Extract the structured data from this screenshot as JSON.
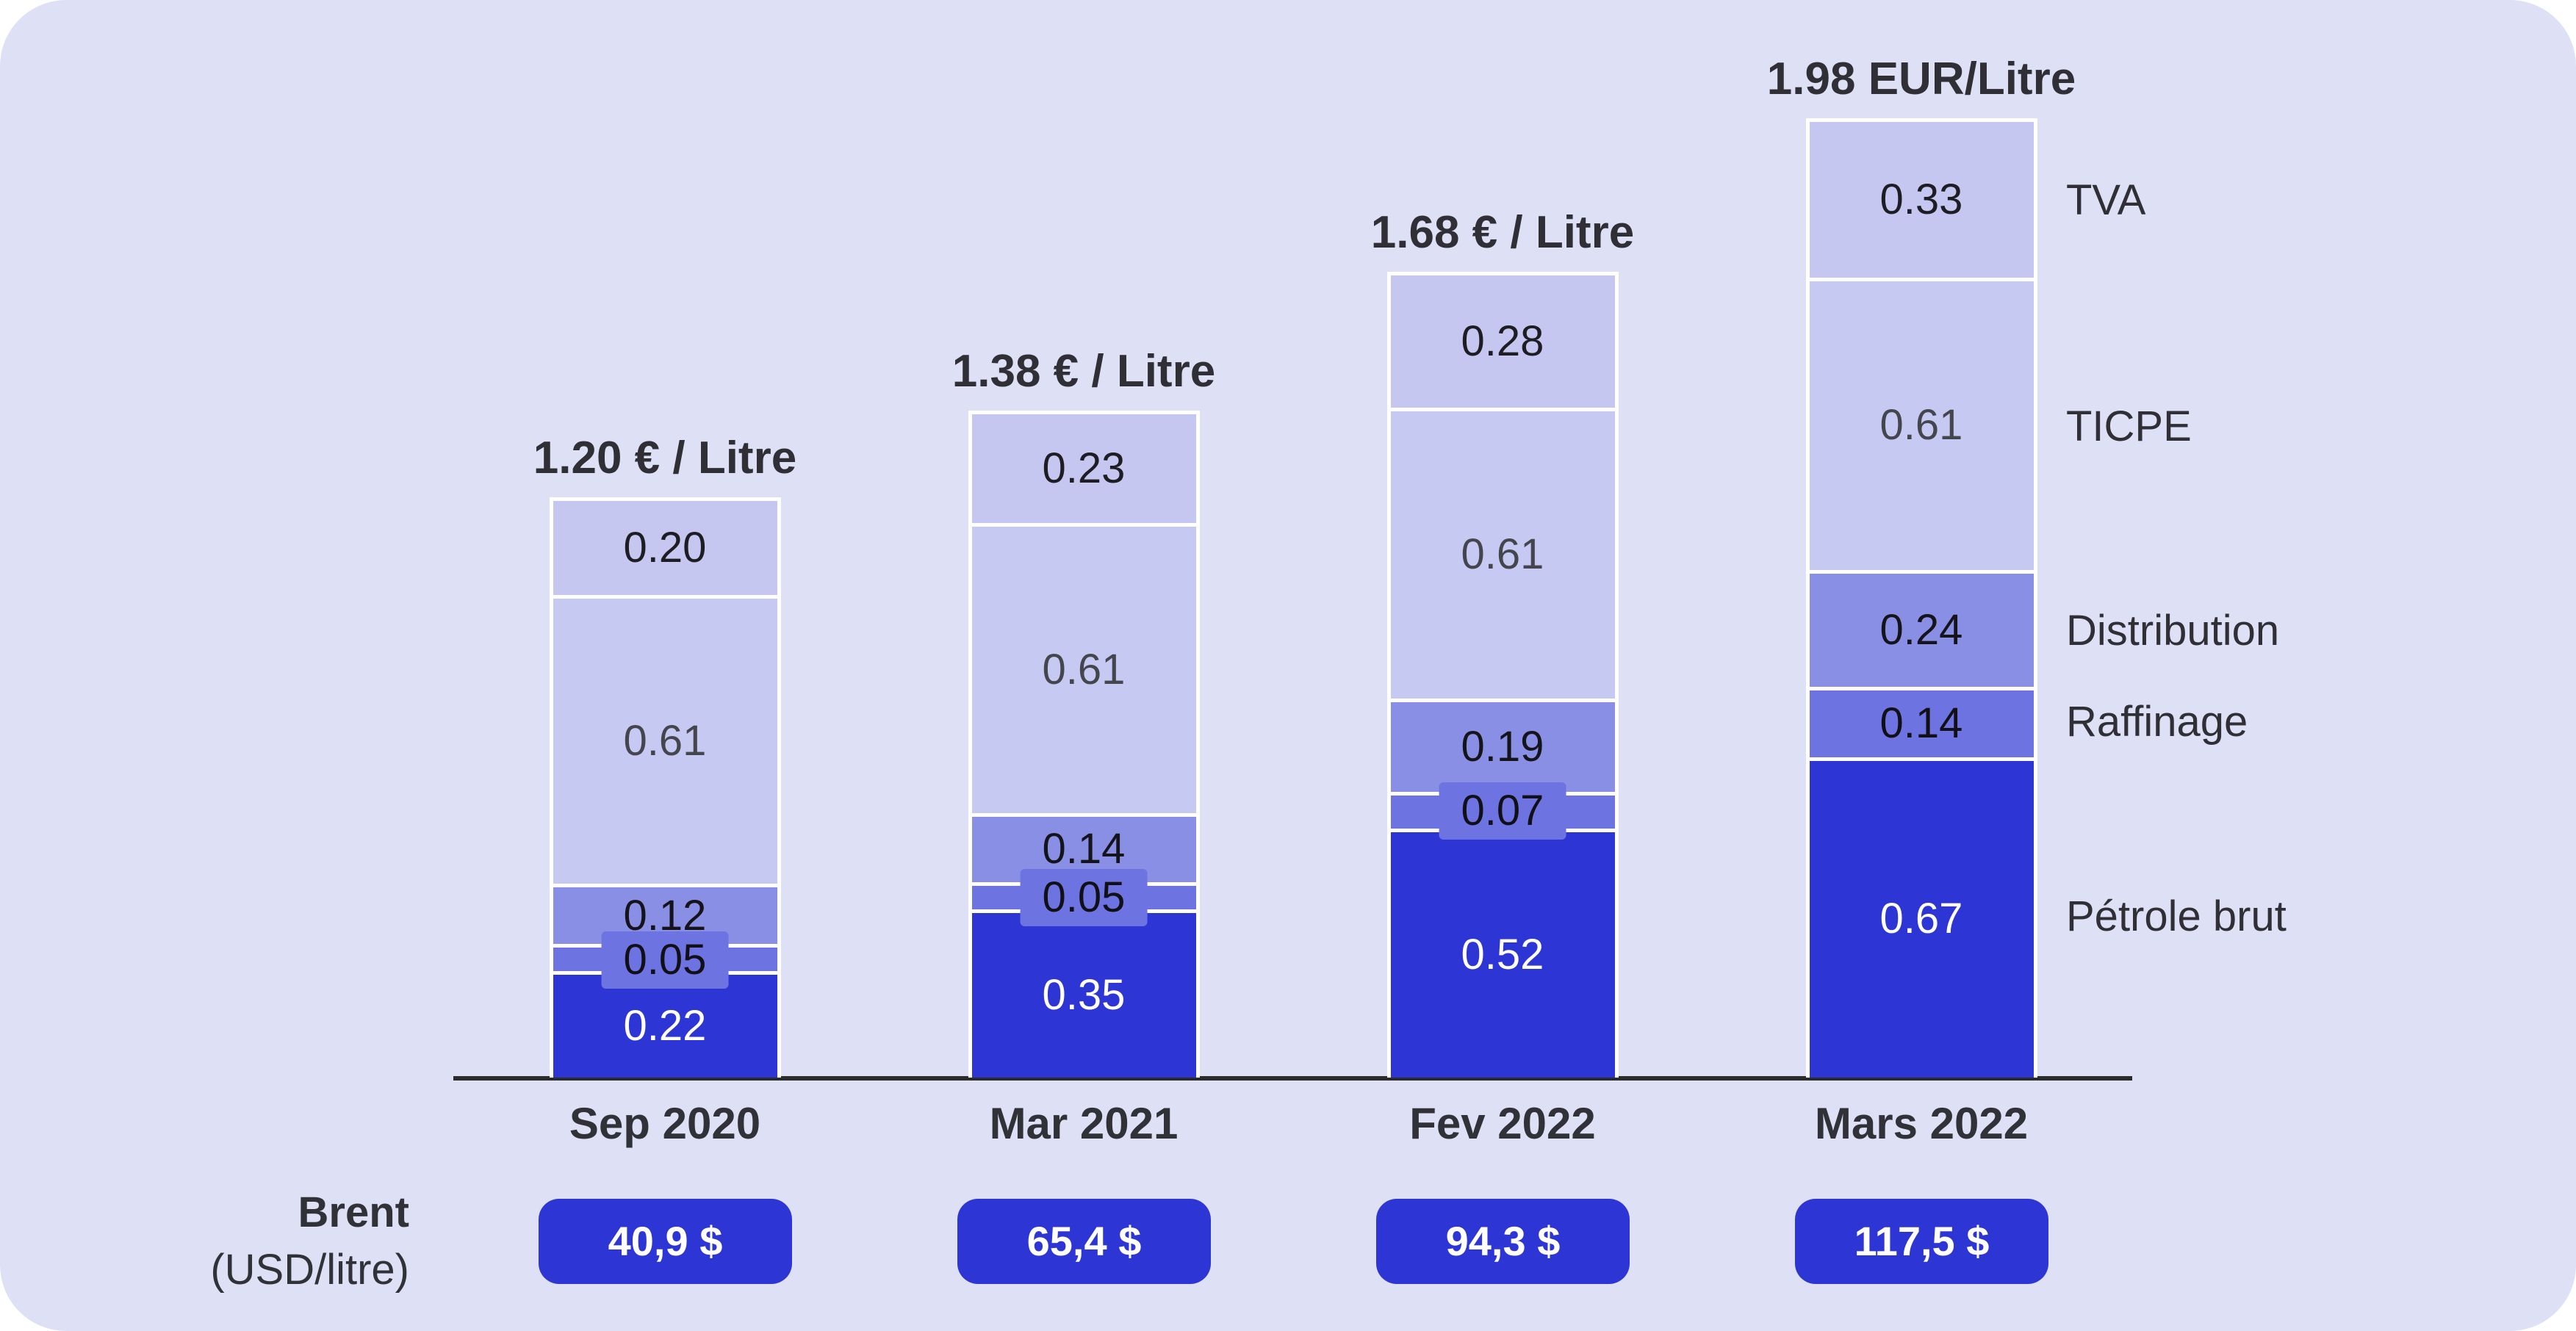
{
  "chart_data": {
    "type": "bar",
    "stacked": true,
    "categories": [
      "Sep 2020",
      "Mar 2021",
      "Fev 2022",
      "Mars 2022"
    ],
    "totals_labels": [
      "1.20 € / Litre",
      "1.38 € / Litre",
      "1.68 € / Litre",
      "1.98 EUR/Litre"
    ],
    "series": [
      {
        "name": "Pétrole brut",
        "color": "#2d36d5",
        "label_color": "#ffffff",
        "values": [
          0.22,
          0.35,
          0.52,
          0.67
        ]
      },
      {
        "name": "Raffinage",
        "color": "#6d74e2",
        "label_color": "#101016",
        "values": [
          0.05,
          0.05,
          0.07,
          0.14
        ]
      },
      {
        "name": "Distribution",
        "color": "#8a8fe6",
        "label_color": "#14141a",
        "values": [
          0.12,
          0.14,
          0.19,
          0.24
        ]
      },
      {
        "name": "TICPE",
        "color": "#c6c9f2",
        "label_color": "#45454d",
        "values": [
          0.61,
          0.61,
          0.61,
          0.61
        ]
      },
      {
        "name": "TVA",
        "color": "#c5c7f0",
        "label_color": "#1d1d23",
        "values": [
          0.2,
          0.23,
          0.28,
          0.33
        ]
      }
    ],
    "value_format_decimals": 2,
    "ylim": [
      0,
      1.99
    ],
    "grid": false,
    "legend_position": "right",
    "brent": {
      "label_line1": "Brent",
      "label_line2": "(USD/litre)",
      "values": [
        "40,9 $",
        "65,4 $",
        "94,3 $",
        "117,5 $"
      ]
    }
  },
  "style": {
    "background": "#dee1f6",
    "page_background": "#ffffff",
    "axis_color": "#2b2b2b",
    "segment_divider": "#ffffff",
    "pill_background": "#2d36d5",
    "pill_text": "#ffffff",
    "heading_text": "#2f2f35",
    "axis_label_text": "#313138",
    "legend_text": "#2f2f35"
  }
}
